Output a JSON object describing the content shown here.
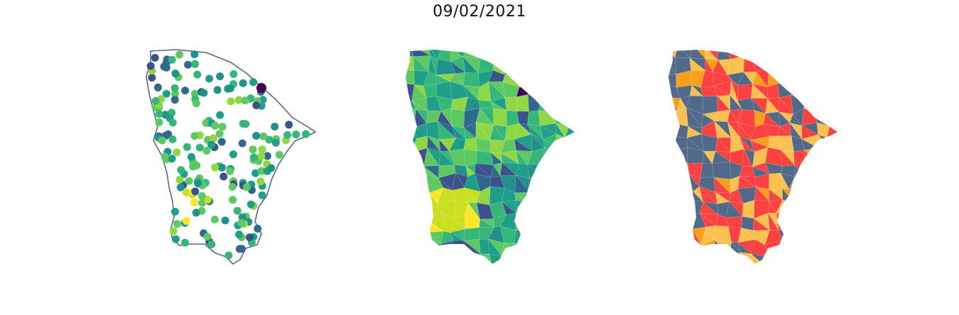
{
  "figure": {
    "title": "09/02/2021"
  },
  "palette": {
    "viridis": [
      "#440154",
      "#3b528b",
      "#31688e",
      "#21918c",
      "#1f9e89",
      "#35b779",
      "#5ec962",
      "#90d743",
      "#c8e020",
      "#fde725"
    ],
    "risk": [
      "#516a89",
      "#fc4240",
      "#fbc150",
      "#f99f1e"
    ]
  },
  "panels": [
    {
      "id": "points-map",
      "kind": "scatter-points",
      "outline_color": "#516a89"
    },
    {
      "id": "choropleth-continuous",
      "kind": "choropleth",
      "colormap": "viridis"
    },
    {
      "id": "choropleth-categorical",
      "kind": "choropleth",
      "colormap": "risk"
    }
  ]
}
